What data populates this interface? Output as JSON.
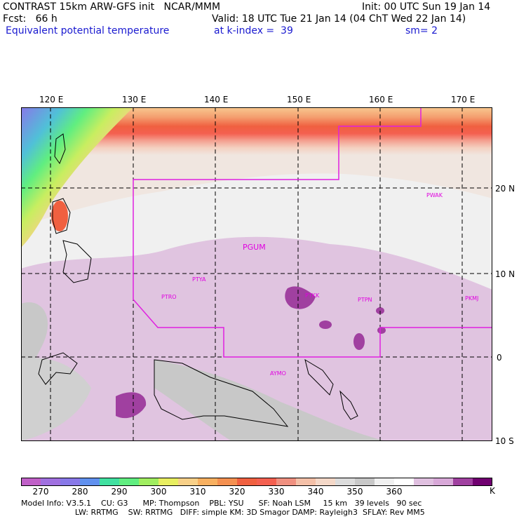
{
  "header": {
    "line1_left": "CONTRAST 15km ARW-GFS init   NCAR/MMM",
    "line1_right": "Init: 00 UTC Sun 19 Jan 14",
    "line2_left": "Fcst:   66 h",
    "line2_right": "Valid: 18 UTC Tue 21 Jan 14 (04 ChT Wed 22 Jan 14)",
    "line3_left": "Equivalent potential temperature",
    "line3_mid": "at k-index =  39",
    "line3_right": "sm= 2"
  },
  "map": {
    "lon_labels": [
      "120 E",
      "130 E",
      "140 E",
      "150 E",
      "160 E",
      "170 E"
    ],
    "lat_labels": [
      "20 N",
      "10 N",
      "0",
      "10 S"
    ],
    "stations": [
      "PGUM",
      "PTYA",
      "PTRO",
      "PTKK",
      "PTPN",
      "PKMJ",
      "PWAK",
      "AYMO"
    ]
  },
  "colorbar": {
    "labels": [
      "270",
      "280",
      "290",
      "300",
      "310",
      "320",
      "330",
      "340",
      "350",
      "360"
    ],
    "unit": "K",
    "colors": [
      "#c060c8",
      "#a070e0",
      "#8878e8",
      "#6090ee",
      "#40e0a0",
      "#60ee80",
      "#a0ee60",
      "#e8ee60",
      "#f8d088",
      "#f8b060",
      "#f49050",
      "#f06040",
      "#f46050",
      "#f09080",
      "#f4c0a8",
      "#f4d8c8",
      "#dcdcdc",
      "#c8c8c8",
      "#f0f0f0",
      "#ffffff",
      "#e0c0e0",
      "#d8a8d8",
      "#a040a0",
      "#700070"
    ]
  },
  "model_info": {
    "line1": "Model Info: V3.5.1    CU: G3      MP: Thompson    PBL: YSU      SF: Noah LSM     15 km   39 levels   90 sec",
    "line2": "                      LW: RRTMG    SW: RRTMG   DIFF: simple KM: 3D Smagor DAMP: Rayleigh3  SFLAY: Rev MM5"
  }
}
